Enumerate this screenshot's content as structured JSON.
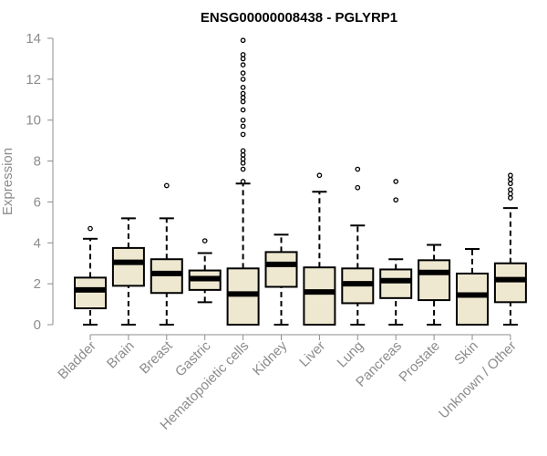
{
  "chart_data": {
    "type": "boxplot",
    "title": "ENSG00000008438 - PGLYRP1",
    "xlabel": "",
    "ylabel": "Expression",
    "ylim": [
      0,
      14
    ],
    "yticks": [
      0,
      2,
      4,
      6,
      8,
      10,
      12,
      14
    ],
    "ytick_labels": [
      "0",
      "2",
      "4",
      "6",
      "8",
      "10",
      "12",
      "14"
    ],
    "grid": false,
    "colors": {
      "box_fill": "#efe8d1",
      "box_stroke": "#000000",
      "median": "#000000",
      "axis": "#8c8c8c",
      "tick_text": "#8c8c8c"
    },
    "categories": [
      "Bladder",
      "Brain",
      "Breast",
      "Gastric",
      "Hematopoietic cells",
      "Kidney",
      "Liver",
      "Lung",
      "Pancreas",
      "Prostate",
      "Skin",
      "Unknown / Other"
    ],
    "boxes": [
      {
        "name": "Bladder",
        "min": 0.0,
        "q1": 0.8,
        "median": 1.7,
        "q3": 2.3,
        "max": 4.2,
        "outliers": [
          4.7
        ]
      },
      {
        "name": "Brain",
        "min": 0.0,
        "q1": 1.9,
        "median": 3.05,
        "q3": 3.75,
        "max": 5.2,
        "outliers": []
      },
      {
        "name": "Breast",
        "min": 0.0,
        "q1": 1.55,
        "median": 2.5,
        "q3": 3.2,
        "max": 5.2,
        "outliers": [
          6.8
        ]
      },
      {
        "name": "Gastric",
        "min": 1.1,
        "q1": 1.7,
        "median": 2.25,
        "q3": 2.65,
        "max": 3.5,
        "outliers": [
          4.1
        ]
      },
      {
        "name": "Hematopoietic cells",
        "min": 0.0,
        "q1": 0.0,
        "median": 1.5,
        "q3": 2.75,
        "max": 6.9,
        "outliers": [
          7.0,
          7.6,
          7.9,
          8.1,
          8.3,
          8.5,
          9.3,
          9.7,
          10.0,
          10.5,
          10.9,
          11.1,
          11.3,
          11.6,
          12.0,
          12.3,
          12.7,
          13.0,
          13.2,
          13.9
        ]
      },
      {
        "name": "Kidney",
        "min": 0.0,
        "q1": 1.85,
        "median": 2.95,
        "q3": 3.55,
        "max": 4.4,
        "outliers": []
      },
      {
        "name": "Liver",
        "min": 0.0,
        "q1": 0.0,
        "median": 1.6,
        "q3": 2.8,
        "max": 6.5,
        "outliers": [
          7.3
        ]
      },
      {
        "name": "Lung",
        "min": 0.0,
        "q1": 1.05,
        "median": 2.0,
        "q3": 2.75,
        "max": 4.85,
        "outliers": [
          6.7,
          7.6
        ]
      },
      {
        "name": "Pancreas",
        "min": 0.0,
        "q1": 1.3,
        "median": 2.15,
        "q3": 2.7,
        "max": 3.2,
        "outliers": [
          6.1,
          7.0
        ]
      },
      {
        "name": "Prostate",
        "min": 0.0,
        "q1": 1.2,
        "median": 2.55,
        "q3": 3.15,
        "max": 3.9,
        "outliers": []
      },
      {
        "name": "Skin",
        "min": 0.0,
        "q1": 0.0,
        "median": 1.45,
        "q3": 2.5,
        "max": 3.7,
        "outliers": []
      },
      {
        "name": "Unknown / Other",
        "min": 0.0,
        "q1": 1.1,
        "median": 2.2,
        "q3": 3.0,
        "max": 5.7,
        "outliers": [
          6.2,
          6.4,
          6.6,
          6.9,
          7.1,
          7.3
        ]
      }
    ]
  }
}
